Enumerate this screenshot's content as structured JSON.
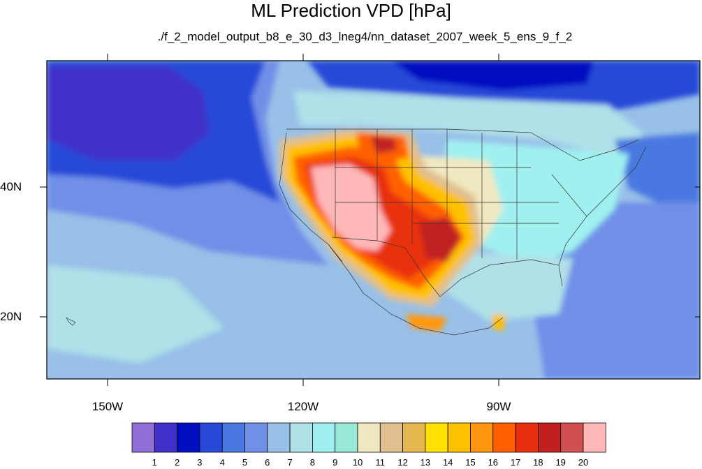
{
  "title": "ML Prediction VPD [hPa]",
  "subtitle": "./f_2_model_output_b8_e_30_d3_lneg4/nn_dataset_2007_week_5_ens_9_f_2",
  "map": {
    "projection": "cylindrical-equidistant",
    "lon_range": [
      -160,
      -65
    ],
    "lat_range": [
      10,
      58
    ],
    "lon_ticks": [
      {
        "label": "150W",
        "value": -150
      },
      {
        "label": "120W",
        "value": -120
      },
      {
        "label": "90W",
        "value": -90
      }
    ],
    "lat_ticks": [
      {
        "label": "40N",
        "value": 40
      },
      {
        "label": "20N",
        "value": 20
      }
    ],
    "basemap": "coastlines, country and US state boundaries"
  },
  "colorbar": {
    "colors": [
      "#9070d8",
      "#4030c8",
      "#0010c0",
      "#2848d8",
      "#4878e0",
      "#7090e8",
      "#98c0e8",
      "#b0e0e8",
      "#a0f0f0",
      "#98e8d8",
      "#f0e8c0",
      "#e0c090",
      "#e8b850",
      "#ffe000",
      "#ffc000",
      "#ff9810",
      "#ff6000",
      "#e83010",
      "#c02020",
      "#d05050",
      "#ffb8b8"
    ],
    "labels": [
      "1",
      "2",
      "3",
      "4",
      "5",
      "6",
      "7",
      "8",
      "9",
      "10",
      "11",
      "12",
      "13",
      "14",
      "15",
      "16",
      "17",
      "18",
      "19",
      "20"
    ]
  }
}
